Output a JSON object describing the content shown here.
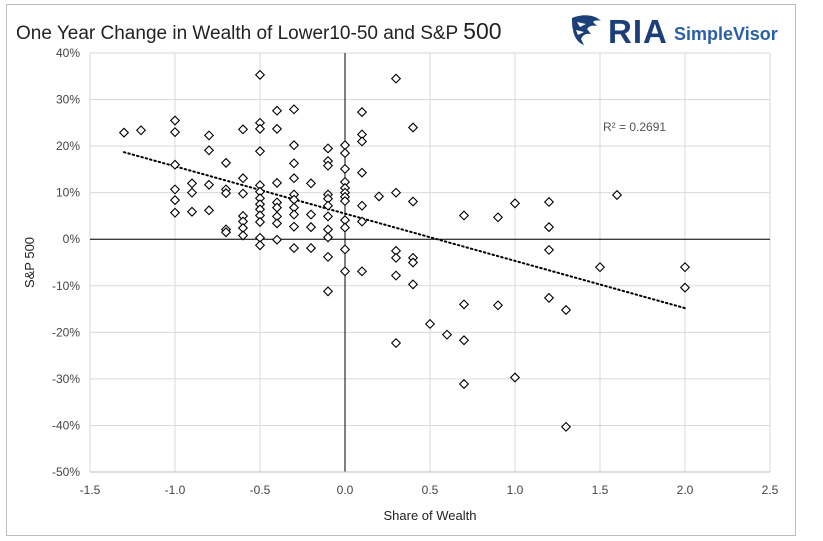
{
  "chart_data": {
    "type": "scatter",
    "title": "One Year Change in Wealth of Lower10-50 and S&P",
    "title_suffix": "500",
    "xlabel": "Share of Wealth",
    "ylabel": "S&P 500",
    "xlim": [
      -1.5,
      2.5
    ],
    "ylim": [
      -50,
      40
    ],
    "x_ticks": [
      -1.5,
      -1.0,
      -0.5,
      0.0,
      0.5,
      1.0,
      1.5,
      2.0,
      2.5
    ],
    "x_tick_labels": [
      "-1.5",
      "-1.0",
      "-0.5",
      "0.0",
      "0.5",
      "1.0",
      "1.5",
      "2.0",
      "2.5"
    ],
    "y_ticks": [
      40,
      30,
      20,
      10,
      0,
      -10,
      -20,
      -30,
      -40,
      -50
    ],
    "y_tick_labels": [
      "40%",
      "30%",
      "20%",
      "10%",
      "0%",
      "-10%",
      "-20%",
      "-30%",
      "-40%",
      "-50%"
    ],
    "grid": true,
    "marker": "diamond",
    "marker_color": "#000000",
    "trendline": {
      "style": "dotted",
      "x": [
        -1.3,
        2.0
      ],
      "y": [
        18.7,
        -14.8
      ],
      "label": "R² = 0.2691"
    },
    "points": [
      [
        -1.3,
        22.9
      ],
      [
        -1.2,
        23.4
      ],
      [
        -1.0,
        25.5
      ],
      [
        -1.0,
        23.0
      ],
      [
        -1.0,
        16.0
      ],
      [
        -1.0,
        10.7
      ],
      [
        -1.0,
        8.4
      ],
      [
        -1.0,
        5.7
      ],
      [
        -0.9,
        12.0
      ],
      [
        -0.9,
        10.0
      ],
      [
        -0.9,
        5.9
      ],
      [
        -0.8,
        22.3
      ],
      [
        -0.8,
        19.1
      ],
      [
        -0.8,
        11.7
      ],
      [
        -0.8,
        6.2
      ],
      [
        -0.7,
        16.4
      ],
      [
        -0.7,
        10.7
      ],
      [
        -0.7,
        9.9
      ],
      [
        -0.7,
        2.1
      ],
      [
        -0.7,
        1.5
      ],
      [
        -0.6,
        23.6
      ],
      [
        -0.6,
        13.1
      ],
      [
        -0.6,
        9.8
      ],
      [
        -0.6,
        5.0
      ],
      [
        -0.6,
        3.8
      ],
      [
        -0.6,
        2.4
      ],
      [
        -0.6,
        0.8
      ],
      [
        -0.5,
        35.3
      ],
      [
        -0.5,
        25.0
      ],
      [
        -0.5,
        23.7
      ],
      [
        -0.5,
        18.9
      ],
      [
        -0.5,
        11.6
      ],
      [
        -0.5,
        10.2
      ],
      [
        -0.5,
        8.8
      ],
      [
        -0.5,
        7.5
      ],
      [
        -0.5,
        6.4
      ],
      [
        -0.5,
        5.1
      ],
      [
        -0.5,
        3.7
      ],
      [
        -0.5,
        0.3
      ],
      [
        -0.5,
        -1.3
      ],
      [
        -0.4,
        27.6
      ],
      [
        -0.4,
        23.7
      ],
      [
        -0.4,
        12.1
      ],
      [
        -0.4,
        7.9
      ],
      [
        -0.4,
        6.8
      ],
      [
        -0.4,
        4.9
      ],
      [
        -0.4,
        3.4
      ],
      [
        -0.4,
        -0.1
      ],
      [
        -0.3,
        27.9
      ],
      [
        -0.3,
        20.2
      ],
      [
        -0.3,
        16.3
      ],
      [
        -0.3,
        13.1
      ],
      [
        -0.3,
        9.6
      ],
      [
        -0.3,
        8.5
      ],
      [
        -0.3,
        6.8
      ],
      [
        -0.3,
        5.3
      ],
      [
        -0.3,
        2.7
      ],
      [
        -0.3,
        -1.9
      ],
      [
        -0.2,
        12.0
      ],
      [
        -0.2,
        5.3
      ],
      [
        -0.2,
        2.6
      ],
      [
        -0.2,
        -1.9
      ],
      [
        -0.1,
        19.5
      ],
      [
        -0.1,
        16.8
      ],
      [
        -0.1,
        15.8
      ],
      [
        -0.1,
        9.6
      ],
      [
        -0.1,
        8.7
      ],
      [
        -0.1,
        7.2
      ],
      [
        -0.1,
        4.9
      ],
      [
        -0.1,
        2.1
      ],
      [
        -0.1,
        0.4
      ],
      [
        -0.1,
        -3.8
      ],
      [
        -0.1,
        -11.2
      ],
      [
        0.0,
        20.2
      ],
      [
        0.0,
        18.5
      ],
      [
        0.0,
        15.1
      ],
      [
        0.0,
        12.3
      ],
      [
        0.0,
        11.0
      ],
      [
        0.0,
        10.0
      ],
      [
        0.0,
        9.1
      ],
      [
        0.0,
        8.2
      ],
      [
        0.0,
        4.1
      ],
      [
        0.0,
        2.5
      ],
      [
        0.0,
        -2.2
      ],
      [
        0.0,
        -6.9
      ],
      [
        0.1,
        27.3
      ],
      [
        0.1,
        22.5
      ],
      [
        0.1,
        21.0
      ],
      [
        0.1,
        14.3
      ],
      [
        0.1,
        7.2
      ],
      [
        0.1,
        3.8
      ],
      [
        0.1,
        -6.9
      ],
      [
        0.2,
        9.2
      ],
      [
        0.3,
        34.5
      ],
      [
        0.3,
        10.0
      ],
      [
        0.3,
        -2.5
      ],
      [
        0.3,
        -4.0
      ],
      [
        0.3,
        -7.8
      ],
      [
        0.3,
        -22.3
      ],
      [
        0.4,
        24.0
      ],
      [
        0.4,
        8.1
      ],
      [
        0.4,
        -4.0
      ],
      [
        0.4,
        -5.0
      ],
      [
        0.4,
        -9.7
      ],
      [
        0.5,
        -18.2
      ],
      [
        0.6,
        -20.5
      ],
      [
        0.7,
        5.1
      ],
      [
        0.7,
        -14.0
      ],
      [
        0.7,
        -21.7
      ],
      [
        0.7,
        -31.1
      ],
      [
        0.9,
        4.7
      ],
      [
        0.9,
        -14.2
      ],
      [
        1.0,
        7.7
      ],
      [
        1.0,
        -29.7
      ],
      [
        1.2,
        8.0
      ],
      [
        1.2,
        2.6
      ],
      [
        1.2,
        -2.3
      ],
      [
        1.2,
        -12.6
      ],
      [
        1.3,
        -15.2
      ],
      [
        1.3,
        -40.3
      ],
      [
        1.5,
        -6.0
      ],
      [
        1.6,
        9.5
      ],
      [
        2.0,
        -6.0
      ],
      [
        2.0,
        -10.4
      ]
    ]
  }
}
